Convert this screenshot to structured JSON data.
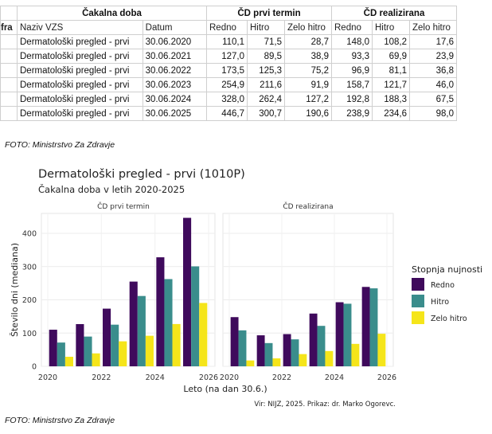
{
  "table": {
    "group_headers": [
      "Čakalna doba",
      "ČD prvi termin",
      "ČD realizirana"
    ],
    "columns": [
      "fra",
      "Naziv VZS",
      "Datum",
      "Redno",
      "Hitro",
      "Zelo hitro",
      "Redno",
      "Hitro",
      "Zelo hitro"
    ],
    "rows": [
      [
        "",
        "Dermatološki pregled - prvi",
        "30.06.2020",
        "110,1",
        "71,5",
        "28,7",
        "148,0",
        "108,2",
        "17,6"
      ],
      [
        "",
        "Dermatološki pregled - prvi",
        "30.06.2021",
        "127,0",
        "89,5",
        "38,9",
        "93,3",
        "69,9",
        "23,9"
      ],
      [
        "",
        "Dermatološki pregled - prvi",
        "30.06.2022",
        "173,5",
        "125,3",
        "75,2",
        "96,9",
        "81,1",
        "36,8"
      ],
      [
        "",
        "Dermatološki pregled - prvi",
        "30.06.2023",
        "254,9",
        "211,6",
        "91,9",
        "158,7",
        "121,7",
        "46,0"
      ],
      [
        "",
        "Dermatološki pregled - prvi",
        "30.06.2024",
        "328,0",
        "262,4",
        "127,2",
        "192,8",
        "188,3",
        "67,5"
      ],
      [
        "",
        "Dermatološki pregled - prvi",
        "30.06.2025",
        "446,7",
        "300,7",
        "190,6",
        "238,9",
        "234,6",
        "98,0"
      ]
    ]
  },
  "captions": [
    "FOTO: Ministrstvo Za Zdravje",
    "FOTO: Ministrstvo Za Zdravje"
  ],
  "chart_data": {
    "type": "bar",
    "title": "Dermatološki pregled - prvi (1010P)",
    "subtitle": "Čakalna doba v letih 2020-2025",
    "xlabel": "Leto (na dan 30.6.)",
    "ylabel": "Število dni (mediana)",
    "ylim": [
      0,
      460
    ],
    "yticks": [
      0,
      100,
      200,
      300,
      400
    ],
    "xlim": [
      2020,
      2026
    ],
    "xticks": [
      2020,
      2022,
      2024,
      2026
    ],
    "x": [
      2020,
      2021,
      2022,
      2023,
      2024,
      2025
    ],
    "legend_title": "Stopnja nujnosti",
    "legend_position": "right",
    "source": "Vir: NIJZ, 2025. Prikaz: dr. Marko Ogorevc.",
    "grid": true,
    "colors": [
      "#3f0a5c",
      "#3a8d8c",
      "#f5e51a"
    ],
    "panels": [
      {
        "title": "ČD prvi termin",
        "series": [
          {
            "name": "Redno",
            "values": [
              110.1,
              127.0,
              173.5,
              254.9,
              328.0,
              446.7
            ]
          },
          {
            "name": "Hitro",
            "values": [
              71.5,
              89.5,
              125.3,
              211.6,
              262.4,
              300.7
            ]
          },
          {
            "name": "Zelo hitro",
            "values": [
              28.7,
              38.9,
              75.2,
              91.9,
              127.2,
              190.6
            ]
          }
        ]
      },
      {
        "title": "ČD realizirana",
        "series": [
          {
            "name": "Redno",
            "values": [
              148.0,
              93.3,
              96.9,
              158.7,
              192.8,
              238.9
            ]
          },
          {
            "name": "Hitro",
            "values": [
              108.2,
              69.9,
              81.1,
              121.7,
              188.3,
              234.6
            ]
          },
          {
            "name": "Zelo hitro",
            "values": [
              17.6,
              23.9,
              36.8,
              46.0,
              67.5,
              98.0
            ]
          }
        ]
      }
    ]
  }
}
